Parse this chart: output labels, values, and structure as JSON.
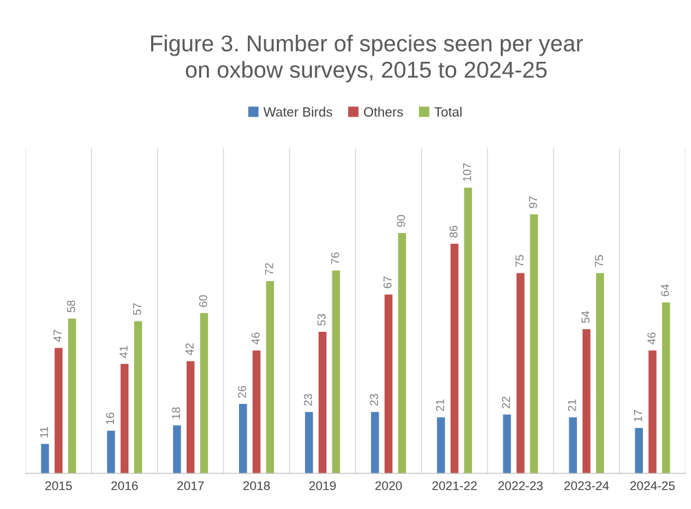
{
  "chart_data": {
    "type": "bar",
    "title": "Figure 3. Number of species seen per year\non oxbow surveys, 2015 to 2024-25",
    "categories": [
      "2015",
      "2016",
      "2017",
      "2018",
      "2019",
      "2020",
      "2021-22",
      "2022-23",
      "2023-24",
      "2024-25"
    ],
    "series": [
      {
        "name": "Water Birds",
        "color": "#4f81bd",
        "values": [
          11,
          16,
          18,
          26,
          23,
          23,
          21,
          22,
          21,
          17
        ]
      },
      {
        "name": "Others",
        "color": "#c0504d",
        "values": [
          47,
          41,
          42,
          46,
          53,
          67,
          86,
          75,
          54,
          46
        ]
      },
      {
        "name": "Total",
        "color": "#9bbb59",
        "values": [
          58,
          57,
          60,
          72,
          76,
          90,
          107,
          97,
          75,
          64
        ]
      }
    ],
    "data_labels": true,
    "legend": "top",
    "grid": "x"
  }
}
